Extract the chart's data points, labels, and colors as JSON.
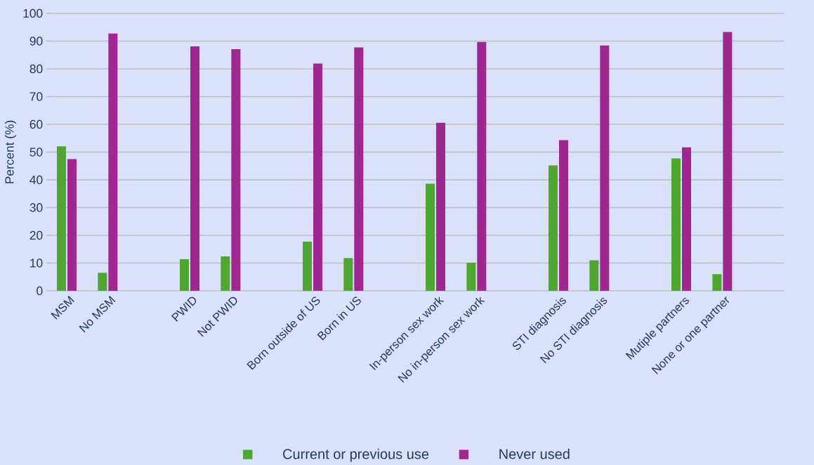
{
  "chart_data": {
    "type": "bar",
    "ylabel": "Percent (%)",
    "categories": [
      "MSM",
      "No MSM",
      null,
      "PWID",
      "Not PWID",
      null,
      "Born outside of US",
      "Born in US",
      null,
      "In-person sex work",
      "No in-person sex work",
      null,
      "STI diagnosis",
      "No STI diagnosis",
      null,
      "Mutiple partners",
      "None or one partner",
      null
    ],
    "series": [
      {
        "name": "Current or previous use",
        "color": "#4ea72e",
        "values": [
          52.1,
          6.5,
          null,
          11.4,
          12.4,
          null,
          17.7,
          11.8,
          null,
          38.6,
          10.1,
          null,
          45.2,
          11.0,
          null,
          47.7,
          6.0,
          null
        ]
      },
      {
        "name": "Never used",
        "color": "#a0278f",
        "values": [
          47.5,
          92.7,
          null,
          88.1,
          87.1,
          null,
          81.9,
          87.7,
          null,
          60.6,
          89.7,
          null,
          54.3,
          88.4,
          null,
          51.7,
          93.3,
          null
        ]
      }
    ],
    "ylim": [
      0,
      100
    ],
    "yticks": [
      0,
      10,
      20,
      30,
      40,
      50,
      60,
      70,
      80,
      90,
      100
    ],
    "grid": "y",
    "legend": "bottom"
  }
}
